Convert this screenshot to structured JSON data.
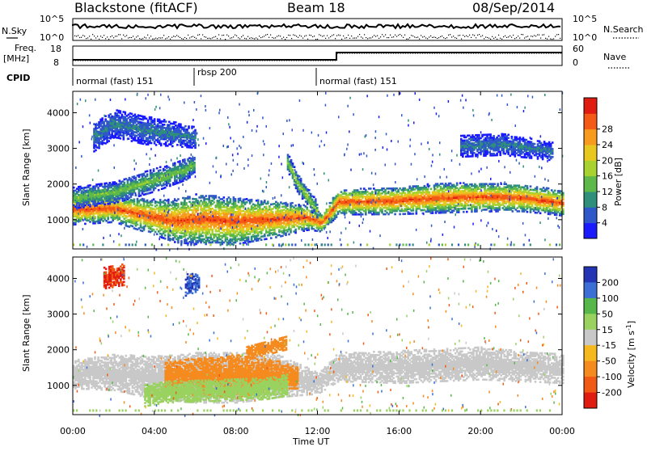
{
  "header": {
    "radar": "Blackstone (fitACF)",
    "beam": "Beam 18",
    "date": "08/Sep/2014"
  },
  "top_panel": {
    "nsky_label": "N.Sky",
    "freq_label": "Freq.",
    "freq_unit": "[MHz]",
    "cpid_label": "CPID",
    "nsearch_label": "N.Search",
    "nave_label": "Nave",
    "count_ticks": [
      "10^5",
      "10^0"
    ],
    "freq_ticks": [
      "18",
      "8"
    ],
    "nave_ticks": [
      "60",
      "0"
    ],
    "cpid_segments": [
      {
        "label": "normal (fast) 151",
        "start": 0,
        "end": 6
      },
      {
        "label": "rbsp 200",
        "start": 6,
        "end": 12
      },
      {
        "label": "normal (fast) 151",
        "start": 12,
        "end": 24
      }
    ]
  },
  "axes": {
    "x_label": "Time UT",
    "y_label": "Slant Range [km]",
    "x_ticks": [
      "00:00",
      "04:00",
      "08:00",
      "12:00",
      "16:00",
      "20:00",
      "00:00"
    ],
    "y_ticks": [
      "1000",
      "2000",
      "3000",
      "4000"
    ]
  },
  "power_colorbar": {
    "label": "Power [dB]",
    "ticks": [
      "4",
      "8",
      "12",
      "16",
      "20",
      "24",
      "28"
    ],
    "colors": [
      "#1a1aff",
      "#2f57c9",
      "#2f8f7a",
      "#5fb84a",
      "#a8d230",
      "#e8c81e",
      "#f79a1e",
      "#f45a15",
      "#e01b12"
    ]
  },
  "velocity_colorbar": {
    "label": "Velocity [m s",
    "label_sup": "-1",
    "label_end": "]",
    "ticks": [
      "200",
      "100",
      "50",
      "15",
      "-15",
      "-50",
      "-100",
      "-200"
    ],
    "colors": [
      "#2335b5",
      "#3b6fd6",
      "#56b84a",
      "#9ad260",
      "#c8c8c8",
      "#f5b81e",
      "#f58a1e",
      "#f05a15",
      "#e01b12"
    ]
  },
  "chart_data": [
    {
      "type": "heatmap",
      "title": "Power",
      "xlabel": "Time UT",
      "ylabel": "Slant Range [km]",
      "x_range_hours": [
        0,
        24
      ],
      "y_range_km": [
        180,
        4600
      ],
      "colorbar": "Power [dB]",
      "bands": [
        {
          "name": "main-echo",
          "t": [
            0,
            2,
            4,
            5,
            6,
            8,
            10,
            11.5,
            12.2,
            13,
            16,
            18,
            20,
            22,
            24
          ],
          "center_km": [
            1270,
            1300,
            1050,
            950,
            1000,
            950,
            1000,
            1050,
            900,
            1480,
            1520,
            1600,
            1620,
            1600,
            1450
          ],
          "width_km": [
            420,
            380,
            500,
            600,
            700,
            650,
            500,
            350,
            250,
            350,
            380,
            420,
            400,
            380,
            350
          ],
          "peak_db": 28
        },
        {
          "name": "rising-arc",
          "t": [
            0,
            2,
            4,
            5.5,
            6
          ],
          "center_km": [
            1600,
            1750,
            2100,
            2400,
            2550
          ],
          "width_km": [
            300,
            300,
            320,
            300,
            250
          ],
          "peak_db": 14
        },
        {
          "name": "falling-arc",
          "t": [
            10.5,
            11,
            11.5,
            12
          ],
          "center_km": [
            2600,
            2000,
            1600,
            1200
          ],
          "width_km": [
            250,
            250,
            250,
            250
          ],
          "peak_db": 16
        },
        {
          "name": "upper-echo",
          "t": [
            1,
            2,
            3.5,
            6
          ],
          "center_km": [
            3300,
            3700,
            3500,
            3300
          ],
          "width_km": [
            400,
            400,
            400,
            300
          ],
          "peak_db": 8
        },
        {
          "name": "evening-upper",
          "t": [
            19,
            21,
            23.5
          ],
          "center_km": [
            3050,
            3100,
            2900
          ],
          "width_km": [
            300,
            300,
            250
          ],
          "peak_db": 8
        }
      ]
    },
    {
      "type": "heatmap",
      "title": "Velocity",
      "xlabel": "Time UT",
      "ylabel": "Slant Range [km]",
      "x_range_hours": [
        0,
        24
      ],
      "y_range_km": [
        180,
        4600
      ],
      "colorbar": "Velocity [m s-1]",
      "bands": [
        {
          "name": "ground-scatter",
          "t": [
            0,
            2,
            4,
            6,
            8,
            10,
            12,
            13,
            16,
            20,
            24
          ],
          "center_km": [
            1300,
            1350,
            1200,
            1200,
            1200,
            1250,
            1050,
            1500,
            1500,
            1600,
            1450
          ],
          "width_km": [
            400,
            500,
            600,
            700,
            700,
            600,
            300,
            400,
            450,
            450,
            400
          ],
          "velocity": 0
        },
        {
          "name": "negative-region",
          "t": [
            4.5,
            6,
            8,
            10,
            11
          ],
          "center_km": [
            1300,
            1250,
            1250,
            1300,
            1200
          ],
          "width_km": [
            400,
            500,
            600,
            400,
            300
          ],
          "velocity": -60
        },
        {
          "name": "arc-west",
          "t": [
            8.5,
            9.5,
            10.5
          ],
          "center_km": [
            1900,
            2050,
            2200
          ],
          "width_km": [
            200,
            200,
            200
          ],
          "velocity": -80
        },
        {
          "name": "flank-green",
          "t": [
            3.5,
            4.5,
            9.5,
            10.5
          ],
          "center_km": [
            700,
            800,
            900,
            1000
          ],
          "width_km": [
            300,
            300,
            300,
            300
          ],
          "velocity": 40
        },
        {
          "name": "red-patch",
          "t": [
            1.5,
            2.5
          ],
          "center_km": [
            4000,
            4100
          ],
          "width_km": [
            300,
            300
          ],
          "velocity": -200
        },
        {
          "name": "blue-patch",
          "t": [
            5.5,
            6.2
          ],
          "center_km": [
            3800,
            3900
          ],
          "width_km": [
            300,
            250
          ],
          "velocity": 200
        }
      ]
    }
  ]
}
